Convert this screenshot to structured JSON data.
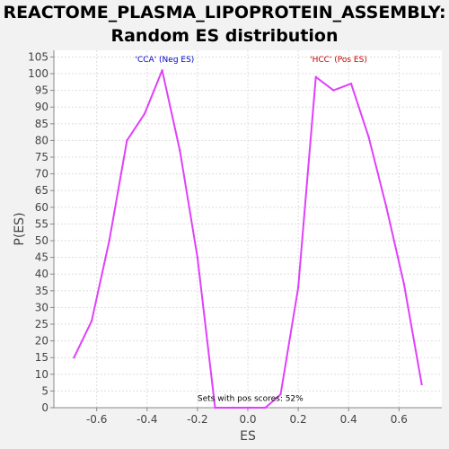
{
  "chart_data": {
    "type": "line",
    "title": "REACTOME_PLASMA_LIPOPROTEIN_ASSEMBLY:",
    "subtitle": "Random ES distribution",
    "xlabel": "ES",
    "ylabel": "P(ES)",
    "xlim": [
      -0.77,
      0.77
    ],
    "ylim": [
      0,
      107
    ],
    "x_ticks": [
      -0.6,
      -0.4,
      -0.2,
      0.0,
      0.2,
      0.4,
      0.6
    ],
    "x_tick_labels": [
      "-0.6",
      "-0.4",
      "-0.2",
      "0.0",
      "0.2",
      "0.4",
      "0.6"
    ],
    "y_ticks": [
      0,
      5,
      10,
      15,
      20,
      25,
      30,
      35,
      40,
      45,
      50,
      55,
      60,
      65,
      70,
      75,
      80,
      85,
      90,
      95,
      100,
      105
    ],
    "grid": true,
    "series": [
      {
        "color": "#e040fb",
        "x": [
          -0.69,
          -0.62,
          -0.55,
          -0.48,
          -0.41,
          -0.34,
          -0.27,
          -0.2,
          -0.13,
          -0.06,
          0.01,
          0.07,
          0.13,
          0.2,
          0.27,
          0.34,
          0.41,
          0.48,
          0.55,
          0.62,
          0.69
        ],
        "y": [
          15,
          26,
          50,
          80,
          88,
          101,
          77,
          45,
          0,
          0,
          0,
          0,
          4,
          36,
          99,
          95,
          97,
          81,
          60,
          37,
          7
        ]
      }
    ],
    "annotations": [
      {
        "text": "'CCA' (Neg ES)",
        "color": "#0000cc",
        "x": -0.33,
        "y": 103.5
      },
      {
        "text": "'HCC' (Pos ES)",
        "color": "#cc0000",
        "x": 0.36,
        "y": 103.5
      },
      {
        "text": "Sets with pos scores: 52%",
        "color": "#000000",
        "x": 0.01,
        "y": 2
      }
    ]
  }
}
